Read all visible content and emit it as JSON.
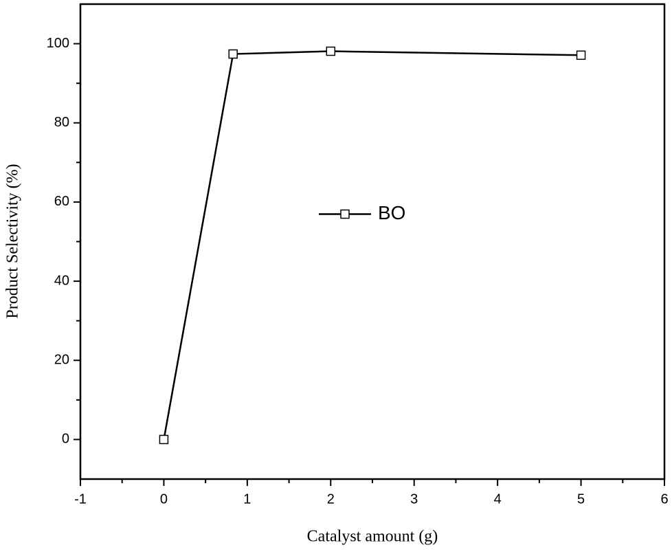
{
  "chart_data": {
    "type": "line",
    "x_label": "Catalyst amount (g)",
    "y_label": "Product Selectivity (%)",
    "x": [
      0,
      0.83,
      2,
      5
    ],
    "series": [
      {
        "name": "BO",
        "color": "#000000",
        "values": [
          0,
          97.4,
          98.1,
          97.1
        ]
      }
    ],
    "xlim": [
      -1,
      6
    ],
    "xticks": [
      -1,
      0,
      1,
      2,
      3,
      4,
      5,
      6
    ],
    "ylim": [
      -10,
      110
    ],
    "yticks": [
      0,
      20,
      40,
      60,
      80,
      100
    ],
    "legend": "center",
    "marker": "open-square"
  }
}
